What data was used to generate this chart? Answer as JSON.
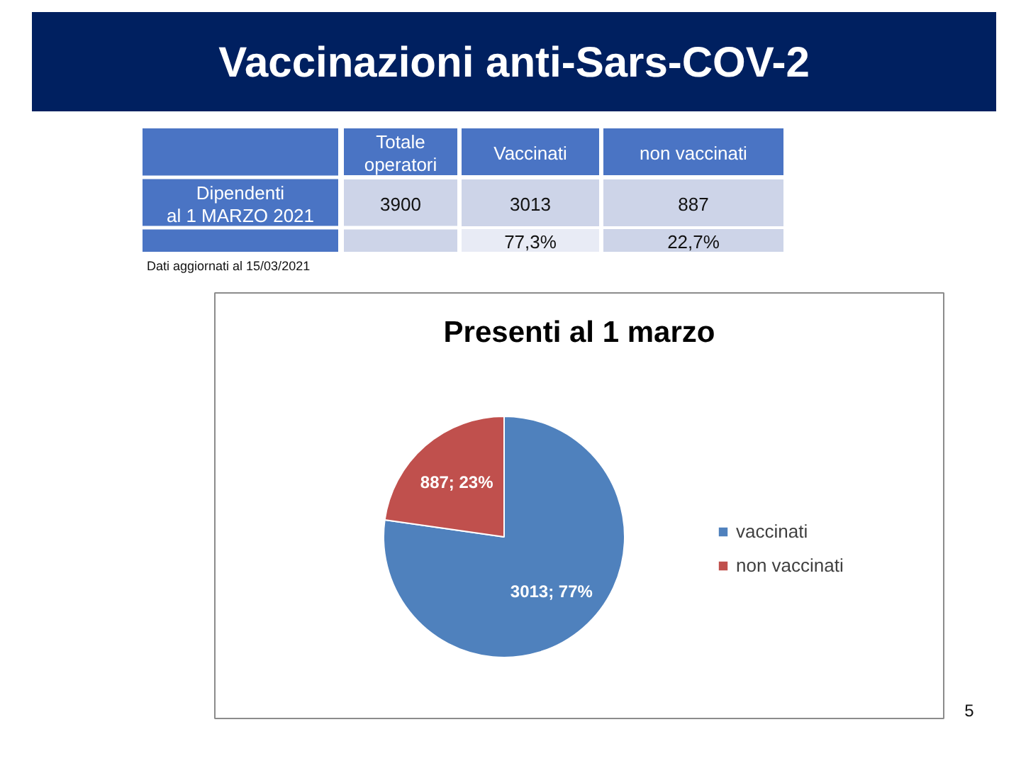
{
  "chart_data": [
    {
      "type": "other",
      "title": "Vaccinazioni anti-Sars-COV-2",
      "annotations": [
        "Totale\noperatori",
        "Vaccinati",
        "non vaccinati",
        "Dipendenti\nal 1 MARZO 2021",
        "3900",
        "3013",
        "887",
        "77,3%",
        "22,7%",
        "Dati aggiornati al 15/03/2021",
        "5"
      ]
    },
    {
      "type": "pie",
      "title": "Presenti al 1 marzo",
      "categories": [
        "vaccinati",
        "non vaccinati"
      ],
      "values": [
        3013,
        887
      ],
      "colors": [
        "#4f81bd",
        "#c0504d"
      ],
      "value_labels": [
        "3013; 77%",
        "887; 23%"
      ],
      "legend": "right"
    }
  ]
}
